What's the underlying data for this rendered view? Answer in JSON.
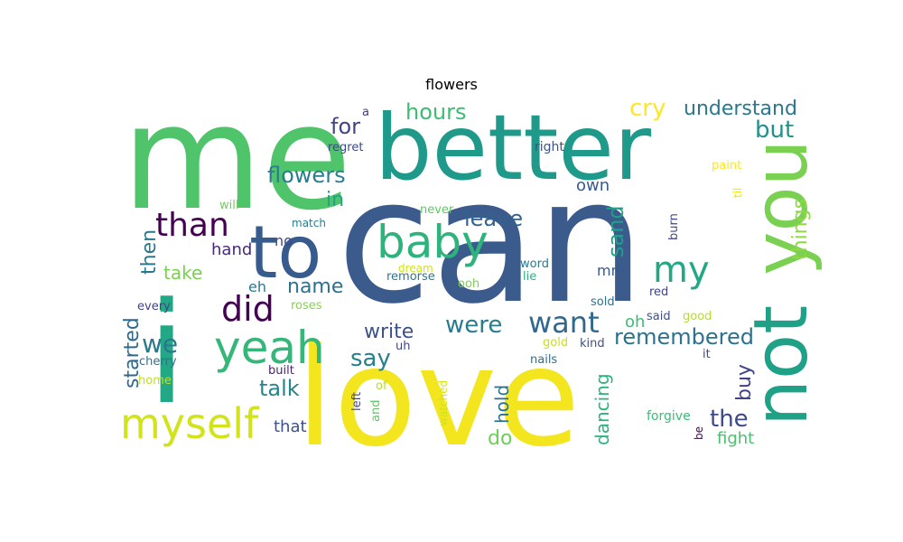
{
  "title": "flowers",
  "words": [
    {
      "text": "can",
      "color": "#3b5b8c"
    },
    {
      "text": "me",
      "color": "#4fc46a"
    },
    {
      "text": "love",
      "color": "#f3e51e"
    },
    {
      "text": "i",
      "color": "#22a884"
    },
    {
      "text": "better",
      "color": "#1f9a8a"
    },
    {
      "text": "not",
      "color": "#1fa187"
    },
    {
      "text": "you",
      "color": "#7ad151"
    },
    {
      "text": "to",
      "color": "#375b8d"
    },
    {
      "text": "baby",
      "color": "#2eb37c"
    },
    {
      "text": "yeah",
      "color": "#35b779"
    },
    {
      "text": "myself",
      "color": "#d2e21b"
    },
    {
      "text": "than",
      "color": "#440154"
    },
    {
      "text": "my",
      "color": "#22a884"
    },
    {
      "text": "did",
      "color": "#440154"
    },
    {
      "text": "want",
      "color": "#31688e"
    },
    {
      "text": "were",
      "color": "#297b8e"
    },
    {
      "text": "we",
      "color": "#2a788e"
    },
    {
      "text": "flowers",
      "color": "#287d8e"
    },
    {
      "text": "remembered",
      "color": "#2c728e"
    },
    {
      "text": "the",
      "color": "#3e4989"
    },
    {
      "text": "things",
      "color": "#8fd744"
    },
    {
      "text": "understand",
      "color": "#2a788e"
    },
    {
      "text": "hours",
      "color": "#3dbc74"
    },
    {
      "text": "cry",
      "color": "#fde725"
    },
    {
      "text": "but",
      "color": "#21918c"
    },
    {
      "text": "for",
      "color": "#414487"
    },
    {
      "text": "leave",
      "color": "#33638d"
    },
    {
      "text": "write",
      "color": "#3b528b"
    },
    {
      "text": "say",
      "color": "#27808e"
    },
    {
      "text": "talk",
      "color": "#25848e"
    },
    {
      "text": "name",
      "color": "#2c728e"
    },
    {
      "text": "in",
      "color": "#20a486"
    },
    {
      "text": "then",
      "color": "#2a788e"
    },
    {
      "text": "started",
      "color": "#31688e"
    },
    {
      "text": "take",
      "color": "#7ad151"
    },
    {
      "text": "hand",
      "color": "#482878"
    },
    {
      "text": "sand",
      "color": "#1fa088"
    },
    {
      "text": "own",
      "color": "#375b8d"
    },
    {
      "text": "buy",
      "color": "#414487"
    },
    {
      "text": "hold",
      "color": "#2c728e"
    },
    {
      "text": "dancing",
      "color": "#2db27d"
    },
    {
      "text": "do",
      "color": "#6ece58"
    },
    {
      "text": "that",
      "color": "#3b528b"
    },
    {
      "text": "fight",
      "color": "#4ac16d"
    },
    {
      "text": "mm",
      "color": "#375a8c"
    },
    {
      "text": "oh",
      "color": "#3dbc74"
    },
    {
      "text": "eh",
      "color": "#2a788e"
    },
    {
      "text": "no",
      "color": "#3e4989"
    },
    {
      "text": "forgive",
      "color": "#3dbc74"
    },
    {
      "text": "regret",
      "color": "#3e4989"
    },
    {
      "text": "right",
      "color": "#3b528b"
    },
    {
      "text": "a",
      "color": "#443a83"
    },
    {
      "text": "paint",
      "color": "#fde725"
    },
    {
      "text": "til",
      "color": "#f1e51d"
    },
    {
      "text": "will",
      "color": "#6ece58"
    },
    {
      "text": "never",
      "color": "#5ec962"
    },
    {
      "text": "match",
      "color": "#297b8e"
    },
    {
      "text": "burn",
      "color": "#3e4989"
    },
    {
      "text": "dream",
      "color": "#d2e21b"
    },
    {
      "text": "remorse",
      "color": "#2a788e"
    },
    {
      "text": "word",
      "color": "#2a788e"
    },
    {
      "text": "lie",
      "color": "#2db27d"
    },
    {
      "text": "ooh",
      "color": "#7ad151"
    },
    {
      "text": "red",
      "color": "#414487"
    },
    {
      "text": "sold",
      "color": "#2c728e"
    },
    {
      "text": "said",
      "color": "#3b528b"
    },
    {
      "text": "good",
      "color": "#b5de2b"
    },
    {
      "text": "roses",
      "color": "#86d549"
    },
    {
      "text": "every",
      "color": "#414487"
    },
    {
      "text": "uh",
      "color": "#414487"
    },
    {
      "text": "kind",
      "color": "#3b528b"
    },
    {
      "text": "gold",
      "color": "#c8e020"
    },
    {
      "text": "cherry",
      "color": "#2c728e"
    },
    {
      "text": "built",
      "color": "#482475"
    },
    {
      "text": "nails",
      "color": "#2c728e"
    },
    {
      "text": "it",
      "color": "#3e4989"
    },
    {
      "text": "home",
      "color": "#c2df23"
    },
    {
      "text": "left",
      "color": "#414487"
    },
    {
      "text": "and",
      "color": "#5ec962"
    },
    {
      "text": "of",
      "color": "#b5de2b"
    },
    {
      "text": "watched",
      "color": "#d2e21b"
    },
    {
      "text": "be",
      "color": "#440154"
    }
  ]
}
